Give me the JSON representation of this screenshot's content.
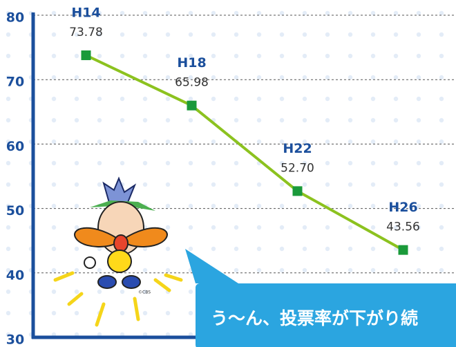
{
  "chart_data": {
    "type": "line",
    "categories": [
      "H14",
      "H18",
      "H22",
      "H26"
    ],
    "series": [
      {
        "color": "#8cc21f",
        "marker_color": "#1a9a3a",
        "values": [
          73.78,
          65.98,
          52.7,
          43.56
        ],
        "value_labels": [
          "73.78",
          "65.98",
          "52.70",
          "43.56"
        ]
      }
    ],
    "ylim": [
      30,
      80
    ],
    "yticks": [
      30,
      40,
      50,
      60,
      70,
      80
    ],
    "grid": true
  },
  "speech_bubble": {
    "text": "う〜ん、投票率が下がり続"
  },
  "copyright": "©CBS"
}
